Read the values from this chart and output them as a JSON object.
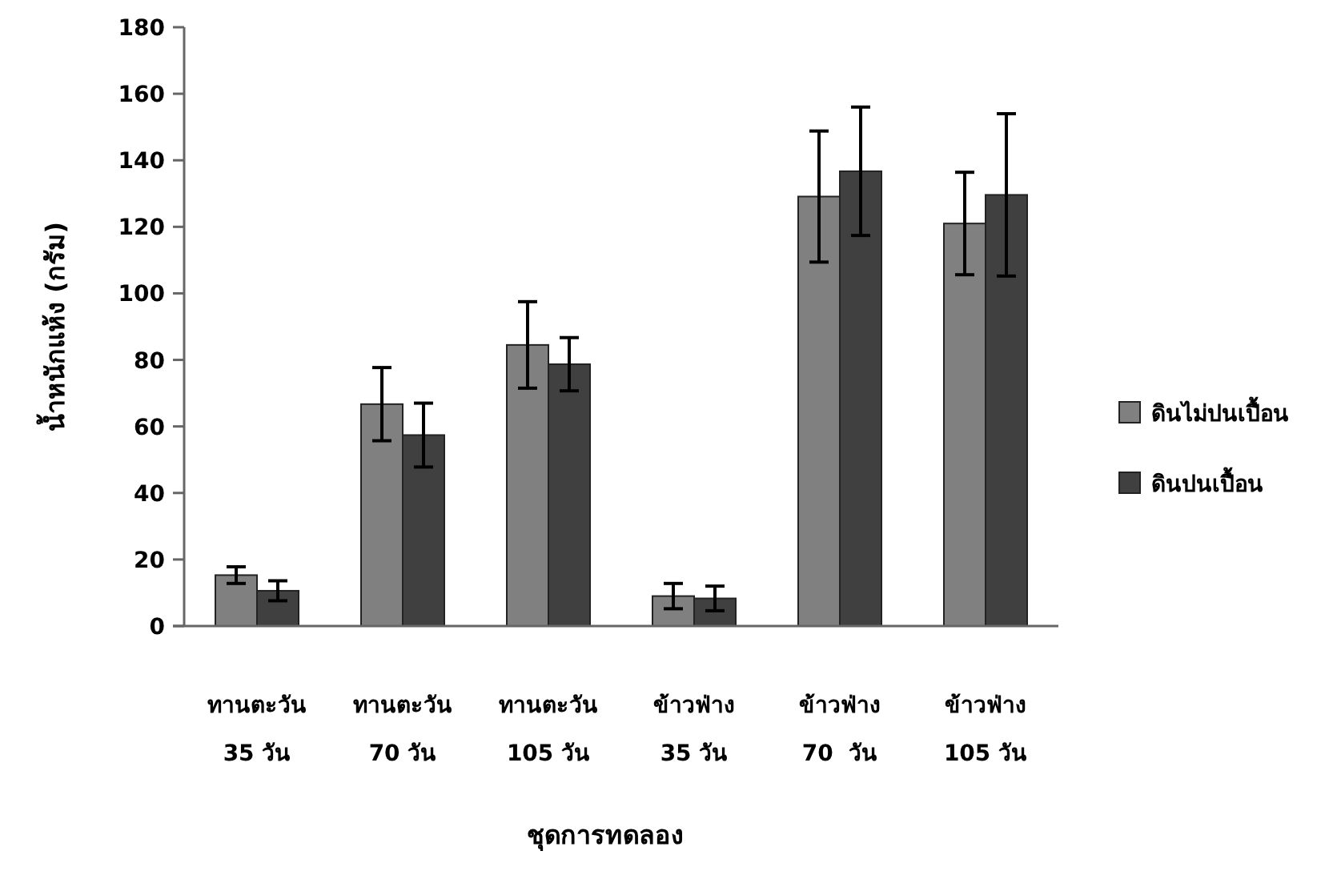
{
  "chart_data": {
    "type": "bar",
    "xlabel": "ชุดการทดลอง",
    "ylabel": "น้ำหนักแห้ง (กรัม)",
    "categories": [
      "ทานตะวัน\n35 วัน",
      "ทานตะวัน\n70 วัน",
      "ทานตะวัน\n105 วัน",
      "ข้าวฟ่าง\n35 วัน",
      "ข้าวฟ่าง\n70  วัน",
      "ข้าวฟ่าง\n105 วัน"
    ],
    "series": [
      {
        "name": "ดินไม่ปนเปื้อน",
        "color": "#808080",
        "values": [
          15.3,
          66.7,
          84.5,
          9.0,
          129.1,
          121.0
        ],
        "errors": [
          2.5,
          11,
          13,
          3.8,
          19.7,
          15.4
        ]
      },
      {
        "name": "ดินปนเปื้อน",
        "color": "#404040",
        "values": [
          10.6,
          57.4,
          78.7,
          8.3,
          136.7,
          129.6
        ],
        "errors": [
          3,
          9.6,
          8,
          3.7,
          19.3,
          24.4
        ]
      }
    ],
    "ylim": [
      0,
      180
    ],
    "yticks": [
      0,
      20,
      40,
      60,
      80,
      100,
      120,
      140,
      160,
      180
    ],
    "grid": false,
    "legend": "right"
  }
}
